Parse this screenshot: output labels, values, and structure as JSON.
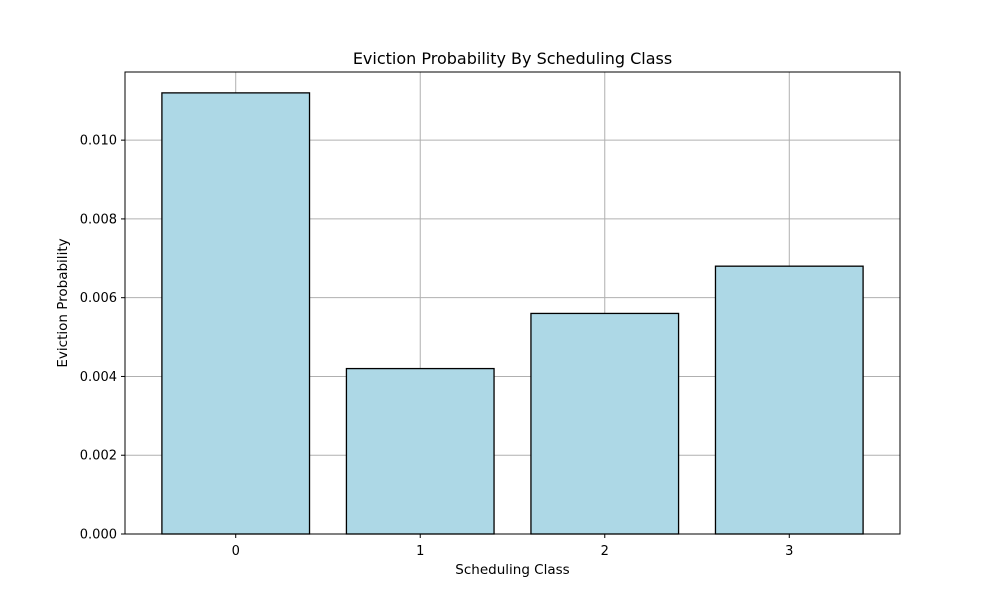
{
  "chart_data": {
    "type": "bar",
    "title": "Eviction Probability By Scheduling Class",
    "xlabel": "Scheduling Class",
    "ylabel": "Eviction Probability",
    "categories": [
      "0",
      "1",
      "2",
      "3"
    ],
    "values": [
      0.0112,
      0.0042,
      0.0056,
      0.0068
    ],
    "ylim": [
      0,
      0.01173
    ],
    "yticks": [
      "0.000",
      "0.002",
      "0.004",
      "0.006",
      "0.008",
      "0.010"
    ],
    "ytick_values": [
      0,
      0.002,
      0.004,
      0.006,
      0.008,
      0.01
    ],
    "grid": true,
    "legend": "none",
    "colors": {
      "bar_fill": "#add8e6",
      "bar_edge": "#000000",
      "grid": "#b0b0b0"
    }
  }
}
